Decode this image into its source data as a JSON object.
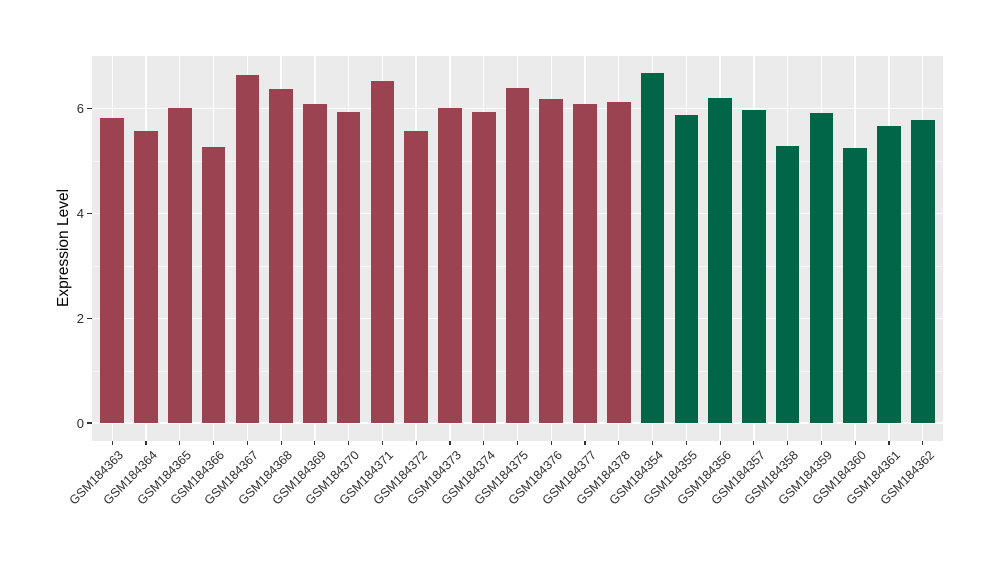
{
  "chart_data": {
    "type": "bar",
    "title": "",
    "xlabel": "",
    "ylabel": "Expression Level",
    "categories": [
      "GSM184363",
      "GSM184364",
      "GSM184365",
      "GSM184366",
      "GSM184367",
      "GSM184368",
      "GSM184369",
      "GSM184370",
      "GSM184371",
      "GSM184372",
      "GSM184373",
      "GSM184374",
      "GSM184375",
      "GSM184376",
      "GSM184377",
      "GSM184378",
      "GSM184354",
      "GSM184355",
      "GSM184356",
      "GSM184357",
      "GSM184358",
      "GSM184359",
      "GSM184360",
      "GSM184361",
      "GSM184362"
    ],
    "values": [
      5.83,
      5.57,
      6.02,
      5.26,
      6.64,
      6.37,
      6.09,
      5.93,
      6.52,
      5.58,
      6.01,
      5.94,
      6.4,
      6.18,
      6.08,
      6.13,
      6.67,
      5.87,
      6.2,
      5.97,
      5.29,
      5.91,
      5.25,
      5.67,
      5.78
    ],
    "bar_colors": [
      "#9C4351",
      "#9C4351",
      "#9C4351",
      "#9C4351",
      "#9C4351",
      "#9C4351",
      "#9C4351",
      "#9C4351",
      "#9C4351",
      "#9C4351",
      "#9C4351",
      "#9C4351",
      "#9C4351",
      "#9C4351",
      "#9C4351",
      "#9C4351",
      "#006647",
      "#006647",
      "#006647",
      "#006647",
      "#006647",
      "#006647",
      "#006647",
      "#006647",
      "#006647"
    ],
    "ylim": [
      0,
      7
    ],
    "yticks": [
      0,
      2,
      4,
      6
    ],
    "yticks_minor": [
      1,
      3,
      5
    ],
    "x_tick_rotation_deg": 45,
    "grid": true,
    "legend_position": "none"
  },
  "style": {
    "figure_background": "#FFFFFF",
    "panel_background": "#EBEBEB",
    "grid_major_color": "#FFFFFF",
    "grid_minor_color": "#FFFFFF",
    "axis_text_color": "#2F2F2F",
    "axis_title_color": "#000000",
    "tick_mark_color": "#333333",
    "bar_color_group1": "#9C4351",
    "bar_color_group2": "#006647"
  }
}
